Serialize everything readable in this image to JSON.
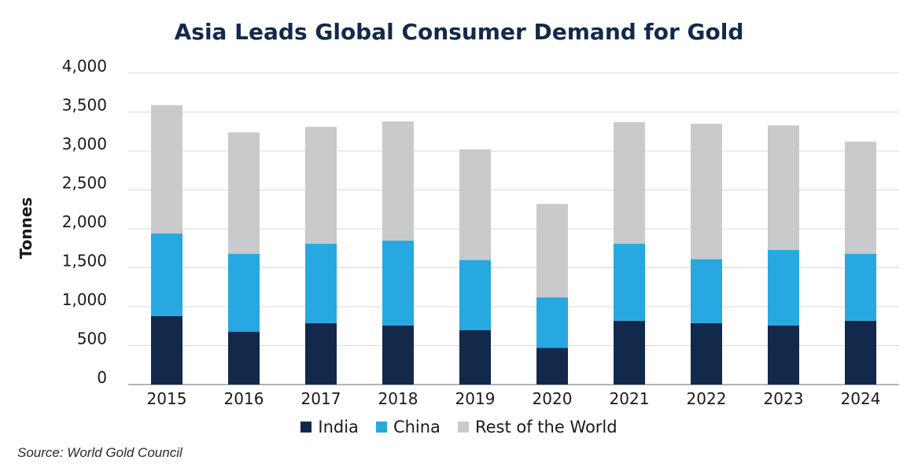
{
  "chart_data": {
    "type": "bar",
    "stacked": true,
    "title": "Asia Leads Global Consumer Demand for Gold",
    "xlabel": "",
    "ylabel": "Tonnes",
    "ylim": [
      0,
      4000
    ],
    "yticks": [
      {
        "value": 0,
        "label": "0"
      },
      {
        "value": 500,
        "label": "500"
      },
      {
        "value": 1000,
        "label": "1,000"
      },
      {
        "value": 1500,
        "label": "1,500"
      },
      {
        "value": 2000,
        "label": "2,000"
      },
      {
        "value": 2500,
        "label": "2,500"
      },
      {
        "value": 3000,
        "label": "3,000"
      },
      {
        "value": 3500,
        "label": "3,500"
      },
      {
        "value": 4000,
        "label": "4,000"
      }
    ],
    "grid": true,
    "legend_position": "bottom-center",
    "categories": [
      "2015",
      "2016",
      "2017",
      "2018",
      "2019",
      "2020",
      "2021",
      "2022",
      "2023",
      "2024"
    ],
    "series": [
      {
        "name": "India",
        "color": "#13294b",
        "values": [
          880,
          680,
          790,
          760,
          700,
          470,
          820,
          790,
          760,
          820
        ]
      },
      {
        "name": "China",
        "color": "#27a8e0",
        "values": [
          1060,
          1000,
          1020,
          1090,
          900,
          650,
          990,
          820,
          970,
          860
        ]
      },
      {
        "name": "Rest of the World",
        "color": "#c8cacb",
        "values": [
          1650,
          1560,
          1500,
          1530,
          1420,
          1200,
          1560,
          1740,
          1600,
          1440
        ]
      }
    ]
  },
  "source": "Source: World Gold Council"
}
